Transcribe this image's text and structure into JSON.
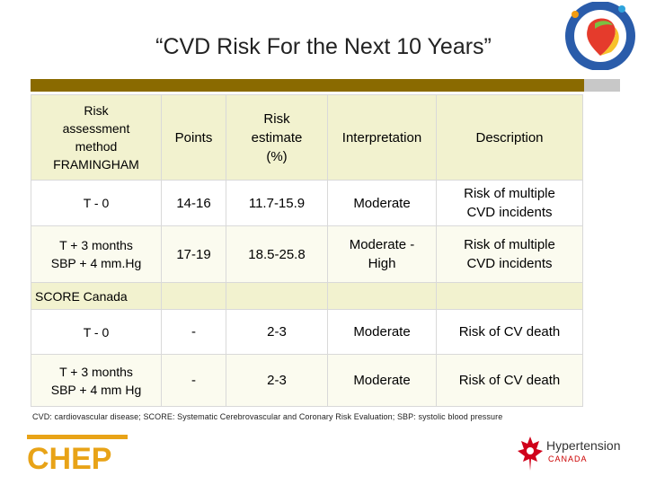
{
  "slide_title": "“CVD Risk For the Next 10 Years”",
  "headers": {
    "method": [
      "Risk",
      "assessment",
      "method",
      "FRAMINGHAM"
    ],
    "points": "Points",
    "estimate": [
      "Risk",
      "estimate",
      "(%)"
    ],
    "interpretation": "Interpretation",
    "description": "Description"
  },
  "framingham_rows": [
    {
      "method": [
        "T - 0"
      ],
      "points": "14-16",
      "estimate": "11.7-15.9",
      "interpretation": [
        "Moderate"
      ],
      "description": [
        "Risk of multiple",
        "CVD incidents"
      ]
    },
    {
      "method": [
        "T + 3 months",
        "SBP + 4 mm.Hg"
      ],
      "points": "17-19",
      "estimate": "18.5-25.8",
      "interpretation": [
        "Moderate -",
        "High"
      ],
      "description": [
        "Risk of multiple",
        "CVD incidents"
      ]
    }
  ],
  "section_score": "SCORE Canada",
  "score_rows": [
    {
      "method": [
        "T - 0"
      ],
      "points": "-",
      "estimate": "2-3",
      "interpretation": "Moderate",
      "description": "Risk of CV death"
    },
    {
      "method": [
        "T + 3 months",
        "SBP + 4 mm Hg"
      ],
      "points": "-",
      "estimate": "2-3",
      "interpretation": "Moderate",
      "description": "Risk of CV death"
    }
  ],
  "footnote": "CVD: cardiovascular disease; SCORE: Systematic Cerebrovascular and Coronary Risk Evaluation; SBP: systolic blood pressure",
  "logos": {
    "score_canada": "SCORE CANADA",
    "chep": "CHEP",
    "hypertension": "Hypertension",
    "hypertension_sub": "CANADA"
  },
  "colors": {
    "brown_bar": "#8a6a00",
    "cell_dark": "#f2f2cf",
    "cell_light": "#fbfbef",
    "chep_yellow": "#e8a317",
    "maple_red": "#d0021b"
  }
}
